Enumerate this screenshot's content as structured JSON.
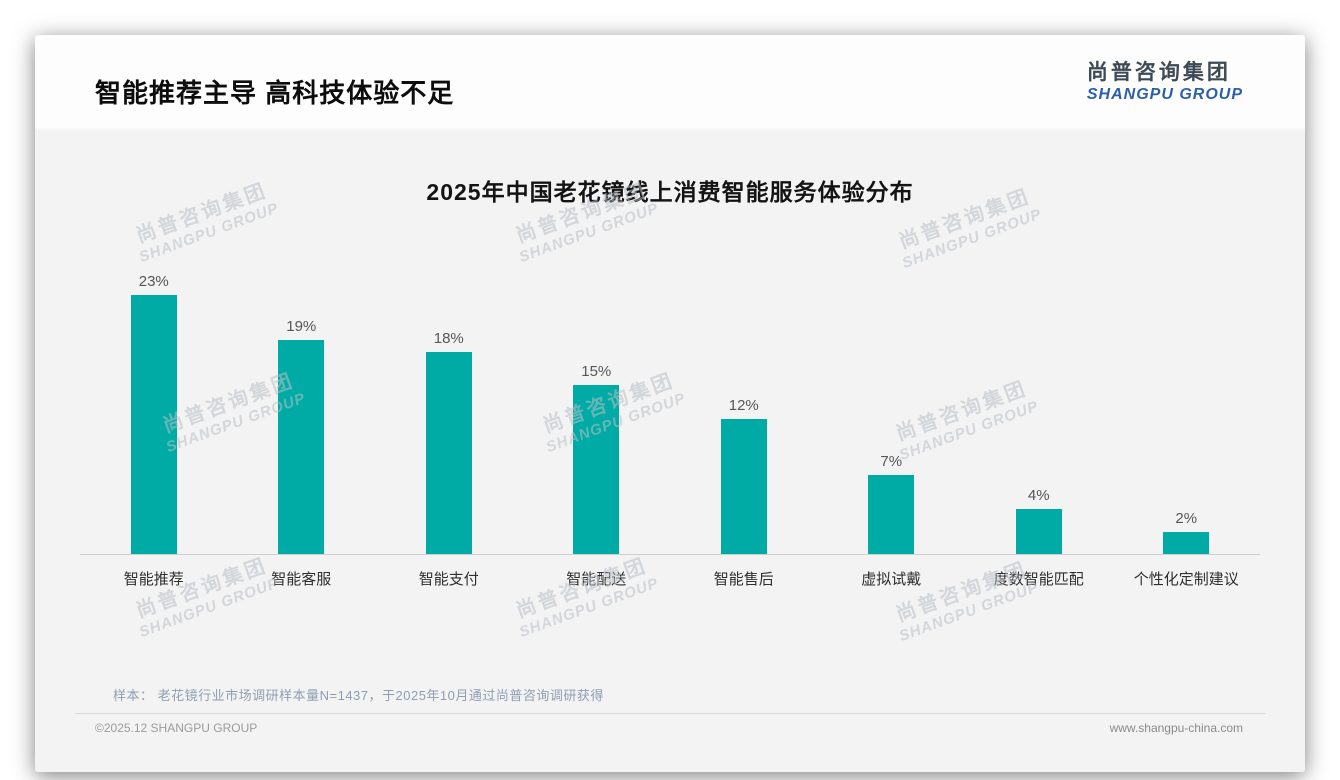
{
  "page": {
    "title": "智能推荐主导 高科技体验不足",
    "logo": {
      "cn": "尚普咨询集团",
      "en": "SHANGPU GROUP"
    },
    "watermark": {
      "cn": "尚普咨询集团",
      "en": "SHANGPU GROUP"
    },
    "note": "样本： 老花镜行业市场调研样本量N=1437，于2025年10月通过尚普咨询调研获得",
    "footer_left": "©2025.12 SHANGPU GROUP",
    "footer_right": "www.shangpu-china.com"
  },
  "colors": {
    "bar": "#00aba5",
    "logo_blue": "#2c5fa9",
    "title_black": "#0d0d0d",
    "note_gray_blue": "#8e9eb2"
  },
  "chart_data": {
    "type": "bar",
    "title": "2025年中国老花镜线上消费智能服务体验分布",
    "categories": [
      "智能推荐",
      "智能客服",
      "智能支付",
      "智能配送",
      "智能售后",
      "虚拟试戴",
      "度数智能匹配",
      "个性化定制建议"
    ],
    "values": [
      23,
      19,
      18,
      15,
      12,
      7,
      4,
      2
    ],
    "data_labels": [
      "23%",
      "19%",
      "18%",
      "15%",
      "12%",
      "7%",
      "4%",
      "2%"
    ],
    "unit": "%",
    "ylim": [
      0,
      25
    ],
    "grid": false,
    "legend": "none",
    "bar_color": "#00aba5"
  }
}
